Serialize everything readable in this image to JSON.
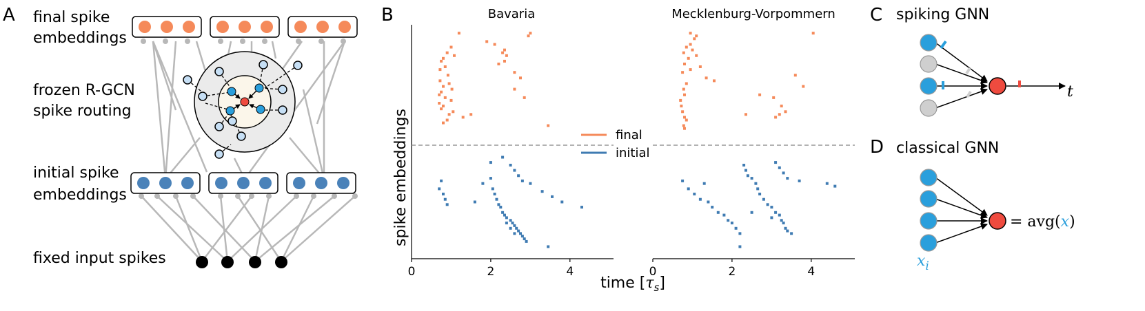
{
  "panels": {
    "A": "A",
    "B": "B",
    "C": "C",
    "D": "D"
  },
  "panelA": {
    "final_line1": "final spike",
    "final_line2": "embeddings",
    "routing_line1": "frozen R-GCN",
    "routing_line2": "spike routing",
    "initial_line1": "initial spike",
    "initial_line2": "embeddings",
    "input": "fixed input spikes"
  },
  "panelB": {
    "ylabel": "spike embeddings",
    "xlabel_prefix": "time [",
    "xlabel_sym": "τ",
    "xlabel_sub": "s",
    "xlabel_suffix": "]",
    "legend_final": "final",
    "legend_initial": "initial",
    "colors": {
      "final": "#f58a5a",
      "initial": "#3f7bb2",
      "neuron_blue": "#2a9fdc",
      "neuron_red": "#ef4b3f"
    }
  },
  "chart_data": [
    {
      "type": "scatter",
      "title": "Bavaria",
      "xlabel": "time [τs]",
      "ylabel": "spike embeddings",
      "xlim": [
        0,
        5.1
      ],
      "xticks": [
        "0",
        "2",
        "4"
      ],
      "series": [
        {
          "name": "final",
          "points": [
            [
              1.2,
              38
            ],
            [
              1.0,
              33
            ],
            [
              0.9,
              31
            ],
            [
              0.8,
              29
            ],
            [
              0.75,
              28
            ],
            [
              1.08,
              30
            ],
            [
              0.85,
              26
            ],
            [
              0.72,
              25
            ],
            [
              0.92,
              23
            ],
            [
              0.72,
              21
            ],
            [
              0.95,
              20
            ],
            [
              0.8,
              19
            ],
            [
              1.02,
              18
            ],
            [
              0.75,
              17
            ],
            [
              0.7,
              16
            ],
            [
              0.85,
              15
            ],
            [
              1.0,
              14
            ],
            [
              0.7,
              13
            ],
            [
              0.8,
              12
            ],
            [
              0.75,
              11
            ],
            [
              1.05,
              10
            ],
            [
              0.95,
              9
            ],
            [
              0.9,
              7
            ],
            [
              0.8,
              6
            ],
            [
              1.3,
              8
            ],
            [
              1.5,
              9
            ],
            [
              1.9,
              35
            ],
            [
              2.1,
              34
            ],
            [
              2.3,
              31
            ],
            [
              2.35,
              32
            ],
            [
              2.4,
              30
            ],
            [
              2.35,
              28
            ],
            [
              2.2,
              27
            ],
            [
              2.6,
              24
            ],
            [
              2.75,
              22
            ],
            [
              2.6,
              18
            ],
            [
              2.85,
              15
            ],
            [
              2.95,
              37
            ],
            [
              3.0,
              38
            ],
            [
              3.45,
              5
            ]
          ]
        },
        {
          "name": "initial",
          "points": [
            [
              0.75,
              28
            ],
            [
              0.7,
              25
            ],
            [
              0.8,
              23
            ],
            [
              0.85,
              21
            ],
            [
              0.9,
              19
            ],
            [
              1.6,
              20
            ],
            [
              1.8,
              27
            ],
            [
              2.0,
              29
            ],
            [
              2.05,
              25
            ],
            [
              2.1,
              23
            ],
            [
              2.15,
              21
            ],
            [
              2.2,
              19
            ],
            [
              2.25,
              18
            ],
            [
              2.3,
              16
            ],
            [
              2.35,
              15
            ],
            [
              2.4,
              14
            ],
            [
              2.5,
              13
            ],
            [
              2.55,
              12
            ],
            [
              2.6,
              11
            ],
            [
              2.65,
              10
            ],
            [
              2.7,
              9
            ],
            [
              2.75,
              8
            ],
            [
              2.8,
              7
            ],
            [
              2.85,
              6
            ],
            [
              2.9,
              5
            ],
            [
              2.0,
              35
            ],
            [
              2.3,
              37
            ],
            [
              2.5,
              34
            ],
            [
              2.6,
              32
            ],
            [
              2.7,
              30
            ],
            [
              2.8,
              28
            ],
            [
              3.0,
              27
            ],
            [
              3.3,
              24
            ],
            [
              3.55,
              22
            ],
            [
              3.8,
              20
            ],
            [
              4.3,
              18
            ],
            [
              2.4,
              12
            ],
            [
              2.5,
              10
            ],
            [
              2.6,
              8
            ],
            [
              3.45,
              3
            ]
          ]
        }
      ]
    },
    {
      "type": "scatter",
      "title": "Mecklenburg-Vorpommern",
      "xlabel": "time [τs]",
      "ylabel": "spike embeddings",
      "xlim": [
        0,
        5.1
      ],
      "xticks": [
        "0",
        "2",
        "4"
      ],
      "series": [
        {
          "name": "final",
          "points": [
            [
              1.05,
              36
            ],
            [
              0.95,
              34
            ],
            [
              0.85,
              33
            ],
            [
              0.78,
              31
            ],
            [
              1.0,
              32
            ],
            [
              1.1,
              30
            ],
            [
              0.9,
              29
            ],
            [
              0.8,
              27
            ],
            [
              1.2,
              26
            ],
            [
              0.95,
              25
            ],
            [
              0.75,
              24
            ],
            [
              1.35,
              22
            ],
            [
              1.55,
              21
            ],
            [
              0.85,
              20
            ],
            [
              0.78,
              18
            ],
            [
              0.8,
              16
            ],
            [
              0.7,
              14
            ],
            [
              0.72,
              12
            ],
            [
              0.75,
              10
            ],
            [
              0.8,
              8
            ],
            [
              0.85,
              7
            ],
            [
              0.78,
              5
            ],
            [
              0.8,
              4
            ],
            [
              1.1,
              37
            ],
            [
              0.95,
              38
            ],
            [
              2.7,
              16
            ],
            [
              3.05,
              15
            ],
            [
              3.25,
              12
            ],
            [
              3.35,
              10
            ],
            [
              3.6,
              23
            ],
            [
              3.8,
              19
            ],
            [
              4.05,
              38
            ],
            [
              2.35,
              9
            ],
            [
              3.1,
              8
            ],
            [
              3.2,
              9
            ]
          ]
        },
        {
          "name": "initial",
          "points": [
            [
              0.75,
              28
            ],
            [
              0.9,
              25
            ],
            [
              1.05,
              23
            ],
            [
              1.2,
              21
            ],
            [
              1.3,
              27
            ],
            [
              1.4,
              20
            ],
            [
              1.5,
              18
            ],
            [
              1.65,
              16
            ],
            [
              1.8,
              15
            ],
            [
              1.9,
              13
            ],
            [
              2.0,
              12
            ],
            [
              2.1,
              10
            ],
            [
              2.2,
              8
            ],
            [
              2.3,
              34
            ],
            [
              2.35,
              32
            ],
            [
              2.4,
              30
            ],
            [
              2.5,
              29
            ],
            [
              2.6,
              27
            ],
            [
              2.65,
              25
            ],
            [
              2.7,
              23
            ],
            [
              2.8,
              21
            ],
            [
              2.9,
              19
            ],
            [
              3.0,
              18
            ],
            [
              3.1,
              16
            ],
            [
              3.2,
              15
            ],
            [
              3.25,
              13
            ],
            [
              3.3,
              12
            ],
            [
              3.35,
              10
            ],
            [
              3.4,
              9
            ],
            [
              3.5,
              8
            ],
            [
              3.1,
              35
            ],
            [
              3.2,
              33
            ],
            [
              3.3,
              31
            ],
            [
              3.4,
              29
            ],
            [
              3.7,
              28
            ],
            [
              4.4,
              27
            ],
            [
              4.6,
              26
            ],
            [
              2.5,
              16
            ],
            [
              3.0,
              14
            ],
            [
              2.2,
              3
            ]
          ]
        }
      ]
    }
  ],
  "panelC": {
    "title": "spiking GNN",
    "t": "t"
  },
  "panelD": {
    "title": "classical GNN",
    "eq_prefix": "= avg(",
    "eq_x": "x",
    "eq_suffix": ")",
    "xi_base": "x",
    "xi_sub": "i"
  }
}
